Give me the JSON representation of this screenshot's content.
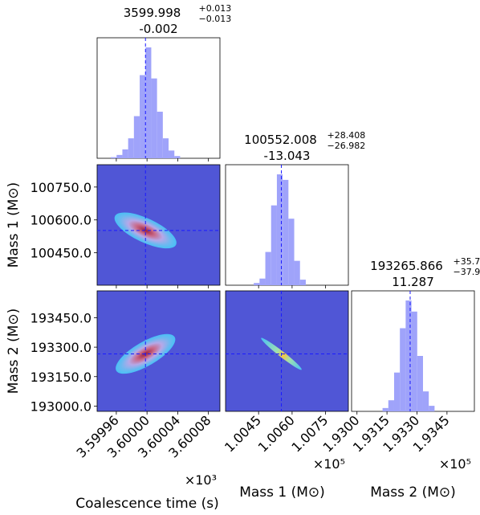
{
  "chart_data": {
    "type": "corner",
    "parameters": [
      {
        "key": "t",
        "name": "Coalescence time (s)",
        "offset_label": "×10³",
        "ticks": [
          3.59996,
          3.6,
          3.60004,
          3.60008
        ],
        "tick_labels": [
          "3.59996",
          "3.60000",
          "3.60004",
          "3.60008"
        ],
        "range": [
          3.599935,
          3.600095
        ],
        "median": 3.599998,
        "title_main": "3599.998",
        "title_plus": "+0.013",
        "title_minus": "−0.013",
        "title_bias": "-0.002",
        "hist": [
          0.01,
          0.03,
          0.08,
          0.18,
          0.38,
          0.75,
          1.0,
          0.72,
          0.42,
          0.18,
          0.07,
          0.02
        ]
      },
      {
        "key": "m1",
        "name": "Mass 1 (M⊙)",
        "offset_label": "×10⁵",
        "ticks": [
          1.0045,
          1.006,
          1.0075
        ],
        "tick_labels": [
          "1.0045",
          "1.0060",
          "1.0075"
        ],
        "axis_ticks": [
          100750.0,
          100600.0,
          100450.0
        ],
        "axis_tick_labels": [
          "100750.0",
          "100600.0",
          "100450.0"
        ],
        "range": [
          1.00302,
          1.00852
        ],
        "median": 1.00552,
        "title_main": "100552.008",
        "title_plus": "+28.408",
        "title_minus": "−26.982",
        "title_bias": "-13.043",
        "hist": [
          0.02,
          0.06,
          0.3,
          0.72,
          1.0,
          0.95,
          0.6,
          0.22,
          0.05
        ]
      },
      {
        "key": "m2",
        "name": "Mass 2 (M⊙)",
        "offset_label": "×10⁵",
        "ticks": [
          1.93,
          1.9315,
          1.933,
          1.9345
        ],
        "tick_labels": [
          "1.9300",
          "1.9315",
          "1.9330",
          "1.9345"
        ],
        "axis_ticks": [
          193450.0,
          193300.0,
          193150.0,
          193000.0
        ],
        "axis_tick_labels": [
          "193450.0",
          "193300.0",
          "193150.0",
          "193000.0"
        ],
        "range": [
          1.92973,
          1.93587
        ],
        "median": 1.932659,
        "title_main": "193265.866",
        "title_plus": "+35.705",
        "title_minus": "−37.968",
        "title_bias": "11.287",
        "hist": [
          0.03,
          0.1,
          0.35,
          0.75,
          1.0,
          0.9,
          0.5,
          0.18,
          0.05
        ]
      }
    ],
    "y_label_m1": "Mass 1 (M⊙)",
    "y_label_m2": "Mass 2 (M⊙)",
    "colors": {
      "hist": "#9fa3fa",
      "panel_bg": "#5056d6",
      "truth_line": "#1a1aff"
    }
  }
}
